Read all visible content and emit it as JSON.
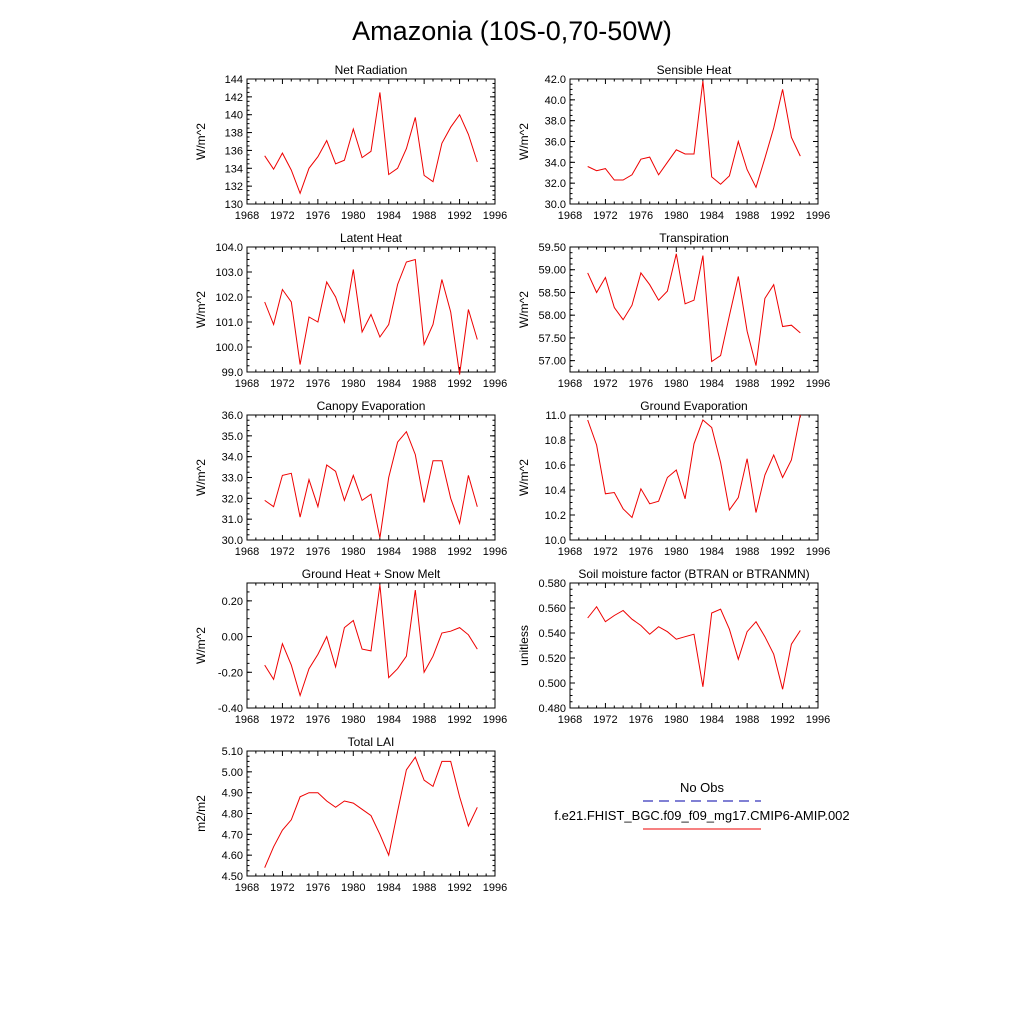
{
  "page": {
    "title": "Amazonia (10S-0,70-50W)"
  },
  "legend": {
    "obs_label": "No Obs",
    "model_label": "f.e21.FHIST_BGC.f09_f09_mg17.CMIP6-AMIP.002",
    "obs_color": "#0000aa",
    "model_color": "#ee0000"
  },
  "chart_data": [
    {
      "type": "line",
      "title": "Net Radiation",
      "ylabel": "W/m^2",
      "xlim": [
        1968,
        1996
      ],
      "ylim": [
        130,
        144
      ],
      "xticks": [
        1968,
        1972,
        1976,
        1980,
        1984,
        1988,
        1992,
        1996
      ],
      "xtick_labels": [
        "1968",
        "1972",
        "1976",
        "1980",
        "1984",
        "1988",
        "1992",
        "1996"
      ],
      "yticks": [
        130,
        132,
        134,
        136,
        138,
        140,
        142,
        144
      ],
      "ytick_labels": [
        "130",
        "132",
        "134",
        "136",
        "138",
        "140",
        "142",
        "144"
      ],
      "series": [
        {
          "name": "f.e21.FHIST_BGC.f09_f09_mg17.CMIP6-AMIP.002",
          "color": "#ee0000",
          "x": [
            1970,
            1971,
            1972,
            1973,
            1974,
            1975,
            1976,
            1977,
            1978,
            1979,
            1980,
            1981,
            1982,
            1983,
            1984,
            1985,
            1986,
            1987,
            1988,
            1989,
            1990,
            1991,
            1992,
            1993,
            1994
          ],
          "y": [
            135.4,
            133.9,
            135.7,
            133.8,
            131.2,
            134.0,
            135.3,
            137.1,
            134.5,
            134.9,
            138.4,
            135.2,
            135.9,
            142.5,
            133.3,
            134.0,
            136.2,
            139.7,
            133.2,
            132.5,
            136.8,
            138.6,
            140.0,
            137.8,
            134.7
          ]
        }
      ]
    },
    {
      "type": "line",
      "title": "Sensible Heat",
      "ylabel": "W/m^2",
      "xlim": [
        1968,
        1996
      ],
      "ylim": [
        30,
        42
      ],
      "xticks": [
        1968,
        1972,
        1976,
        1980,
        1984,
        1988,
        1992,
        1996
      ],
      "xtick_labels": [
        "1968",
        "1972",
        "1976",
        "1980",
        "1984",
        "1988",
        "1992",
        "1996"
      ],
      "yticks": [
        30,
        32,
        34,
        36,
        38,
        40,
        42
      ],
      "ytick_labels": [
        "30.0",
        "32.0",
        "34.0",
        "36.0",
        "38.0",
        "40.0",
        "42.0"
      ],
      "series": [
        {
          "name": "f.e21.FHIST_BGC.f09_f09_mg17.CMIP6-AMIP.002",
          "color": "#ee0000",
          "x": [
            1970,
            1971,
            1972,
            1973,
            1974,
            1975,
            1976,
            1977,
            1978,
            1979,
            1980,
            1981,
            1982,
            1983,
            1984,
            1985,
            1986,
            1987,
            1988,
            1989,
            1990,
            1991,
            1992,
            1993,
            1994
          ],
          "y": [
            33.6,
            33.2,
            33.4,
            32.3,
            32.3,
            32.8,
            34.3,
            34.5,
            32.8,
            34.0,
            35.2,
            34.8,
            34.8,
            41.8,
            32.6,
            31.9,
            32.7,
            36.0,
            33.3,
            31.6,
            34.4,
            37.3,
            41.0,
            36.4,
            34.6
          ]
        }
      ]
    },
    {
      "type": "line",
      "title": "Latent Heat",
      "ylabel": "W/m^2",
      "xlim": [
        1968,
        1996
      ],
      "ylim": [
        99,
        104
      ],
      "xticks": [
        1968,
        1972,
        1976,
        1980,
        1984,
        1988,
        1992,
        1996
      ],
      "xtick_labels": [
        "1968",
        "1972",
        "1976",
        "1980",
        "1984",
        "1988",
        "1992",
        "1996"
      ],
      "yticks": [
        99,
        100,
        101,
        102,
        103,
        104
      ],
      "ytick_labels": [
        "99.0",
        "100.0",
        "101.0",
        "102.0",
        "103.0",
        "104.0"
      ],
      "series": [
        {
          "name": "f.e21.FHIST_BGC.f09_f09_mg17.CMIP6-AMIP.002",
          "color": "#ee0000",
          "x": [
            1970,
            1971,
            1972,
            1973,
            1974,
            1975,
            1976,
            1977,
            1978,
            1979,
            1980,
            1981,
            1982,
            1983,
            1984,
            1985,
            1986,
            1987,
            1988,
            1989,
            1990,
            1991,
            1992,
            1993,
            1994
          ],
          "y": [
            101.8,
            100.9,
            102.3,
            101.8,
            99.3,
            101.2,
            101.0,
            102.6,
            102.0,
            101.0,
            103.1,
            100.6,
            101.3,
            100.4,
            100.9,
            102.5,
            103.4,
            103.5,
            100.1,
            100.9,
            102.7,
            101.4,
            98.9,
            101.5,
            100.3
          ]
        }
      ]
    },
    {
      "type": "line",
      "title": "Transpiration",
      "ylabel": "W/m^2",
      "xlim": [
        1968,
        1996
      ],
      "ylim": [
        56.75,
        59.5
      ],
      "xticks": [
        1968,
        1972,
        1976,
        1980,
        1984,
        1988,
        1992,
        1996
      ],
      "xtick_labels": [
        "1968",
        "1972",
        "1976",
        "1980",
        "1984",
        "1988",
        "1992",
        "1996"
      ],
      "yticks": [
        57.0,
        57.5,
        58.0,
        58.5,
        59.0,
        59.5
      ],
      "ytick_labels": [
        "57.00",
        "57.50",
        "58.00",
        "58.50",
        "59.00",
        "59.50"
      ],
      "series": [
        {
          "name": "f.e21.FHIST_BGC.f09_f09_mg17.CMIP6-AMIP.002",
          "color": "#ee0000",
          "x": [
            1970,
            1971,
            1972,
            1973,
            1974,
            1975,
            1976,
            1977,
            1978,
            1979,
            1980,
            1981,
            1982,
            1983,
            1984,
            1985,
            1986,
            1987,
            1988,
            1989,
            1990,
            1991,
            1992,
            1993,
            1994
          ],
          "y": [
            58.93,
            58.5,
            58.83,
            58.17,
            57.9,
            58.22,
            58.93,
            58.67,
            58.33,
            58.53,
            59.35,
            58.25,
            58.33,
            59.31,
            56.98,
            57.11,
            57.99,
            58.85,
            57.65,
            56.89,
            58.37,
            58.67,
            57.75,
            57.78,
            57.61
          ]
        }
      ]
    },
    {
      "type": "line",
      "title": "Canopy Evaporation",
      "ylabel": "W/m^2",
      "xlim": [
        1968,
        1996
      ],
      "ylim": [
        30,
        36
      ],
      "xticks": [
        1968,
        1972,
        1976,
        1980,
        1984,
        1988,
        1992,
        1996
      ],
      "xtick_labels": [
        "1968",
        "1972",
        "1976",
        "1980",
        "1984",
        "1988",
        "1992",
        "1996"
      ],
      "yticks": [
        30,
        31,
        32,
        33,
        34,
        35,
        36
      ],
      "ytick_labels": [
        "30.0",
        "31.0",
        "32.0",
        "33.0",
        "34.0",
        "35.0",
        "36.0"
      ],
      "series": [
        {
          "name": "f.e21.FHIST_BGC.f09_f09_mg17.CMIP6-AMIP.002",
          "color": "#ee0000",
          "x": [
            1970,
            1971,
            1972,
            1973,
            1974,
            1975,
            1976,
            1977,
            1978,
            1979,
            1980,
            1981,
            1982,
            1983,
            1984,
            1985,
            1986,
            1987,
            1988,
            1989,
            1990,
            1991,
            1992,
            1993,
            1994
          ],
          "y": [
            31.9,
            31.6,
            33.1,
            33.2,
            31.1,
            32.9,
            31.6,
            33.6,
            33.3,
            31.9,
            33.1,
            31.9,
            32.2,
            30.1,
            33.0,
            34.7,
            35.2,
            34.1,
            31.8,
            33.8,
            33.8,
            32.0,
            30.8,
            33.1,
            31.6
          ]
        }
      ]
    },
    {
      "type": "line",
      "title": "Ground Evaporation",
      "ylabel": "W/m^2",
      "xlim": [
        1968,
        1996
      ],
      "ylim": [
        10.0,
        11.0
      ],
      "xticks": [
        1968,
        1972,
        1976,
        1980,
        1984,
        1988,
        1992,
        1996
      ],
      "xtick_labels": [
        "1968",
        "1972",
        "1976",
        "1980",
        "1984",
        "1988",
        "1992",
        "1996"
      ],
      "yticks": [
        10.0,
        10.2,
        10.4,
        10.6,
        10.8,
        11.0
      ],
      "ytick_labels": [
        "10.0",
        "10.2",
        "10.4",
        "10.6",
        "10.8",
        "11.0"
      ],
      "series": [
        {
          "name": "f.e21.FHIST_BGC.f09_f09_mg17.CMIP6-AMIP.002",
          "color": "#ee0000",
          "x": [
            1970,
            1971,
            1972,
            1973,
            1974,
            1975,
            1976,
            1977,
            1978,
            1979,
            1980,
            1981,
            1982,
            1983,
            1984,
            1985,
            1986,
            1987,
            1988,
            1989,
            1990,
            1991,
            1992,
            1993,
            1994
          ],
          "y": [
            10.96,
            10.76,
            10.37,
            10.38,
            10.25,
            10.18,
            10.41,
            10.29,
            10.31,
            10.5,
            10.56,
            10.33,
            10.77,
            10.96,
            10.9,
            10.62,
            10.24,
            10.34,
            10.65,
            10.22,
            10.52,
            10.68,
            10.5,
            10.64,
            11.0
          ]
        }
      ]
    },
    {
      "type": "line",
      "title": "Ground Heat + Snow Melt",
      "ylabel": "W/m^2",
      "xlim": [
        1968,
        1996
      ],
      "ylim": [
        -0.4,
        0.3
      ],
      "xticks": [
        1968,
        1972,
        1976,
        1980,
        1984,
        1988,
        1992,
        1996
      ],
      "xtick_labels": [
        "1968",
        "1972",
        "1976",
        "1980",
        "1984",
        "1988",
        "1992",
        "1996"
      ],
      "yticks": [
        -0.4,
        -0.2,
        0.0,
        0.2
      ],
      "ytick_labels": [
        "-0.40",
        "-0.20",
        "0.00",
        "0.20"
      ],
      "series": [
        {
          "name": "f.e21.FHIST_BGC.f09_f09_mg17.CMIP6-AMIP.002",
          "color": "#ee0000",
          "x": [
            1970,
            1971,
            1972,
            1973,
            1974,
            1975,
            1976,
            1977,
            1978,
            1979,
            1980,
            1981,
            1982,
            1983,
            1984,
            1985,
            1986,
            1987,
            1988,
            1989,
            1990,
            1991,
            1992,
            1993,
            1994
          ],
          "y": [
            -0.16,
            -0.24,
            -0.04,
            -0.16,
            -0.33,
            -0.18,
            -0.1,
            0.0,
            -0.17,
            0.05,
            0.09,
            -0.07,
            -0.08,
            0.29,
            -0.23,
            -0.18,
            -0.11,
            0.26,
            -0.2,
            -0.11,
            0.02,
            0.03,
            0.05,
            0.01,
            -0.07
          ]
        }
      ]
    },
    {
      "type": "line",
      "title": "Soil moisture factor (BTRAN or BTRANMN)",
      "ylabel": "unitless",
      "xlim": [
        1968,
        1996
      ],
      "ylim": [
        0.48,
        0.58
      ],
      "xticks": [
        1968,
        1972,
        1976,
        1980,
        1984,
        1988,
        1992,
        1996
      ],
      "xtick_labels": [
        "1968",
        "1972",
        "1976",
        "1980",
        "1984",
        "1988",
        "1992",
        "1996"
      ],
      "yticks": [
        0.48,
        0.5,
        0.52,
        0.54,
        0.56,
        0.58
      ],
      "ytick_labels": [
        "0.480",
        "0.500",
        "0.520",
        "0.540",
        "0.560",
        "0.580"
      ],
      "series": [
        {
          "name": "f.e21.FHIST_BGC.f09_f09_mg17.CMIP6-AMIP.002",
          "color": "#ee0000",
          "x": [
            1970,
            1971,
            1972,
            1973,
            1974,
            1975,
            1976,
            1977,
            1978,
            1979,
            1980,
            1981,
            1982,
            1983,
            1984,
            1985,
            1986,
            1987,
            1988,
            1989,
            1990,
            1991,
            1992,
            1993,
            1994
          ],
          "y": [
            0.552,
            0.561,
            0.549,
            0.554,
            0.558,
            0.551,
            0.546,
            0.539,
            0.545,
            0.541,
            0.535,
            0.537,
            0.539,
            0.497,
            0.556,
            0.559,
            0.543,
            0.519,
            0.541,
            0.549,
            0.537,
            0.523,
            0.495,
            0.531,
            0.542
          ]
        }
      ]
    },
    {
      "type": "line",
      "title": "Total LAI",
      "ylabel": "m2/m2",
      "xlim": [
        1968,
        1996
      ],
      "ylim": [
        4.5,
        5.1
      ],
      "xticks": [
        1968,
        1972,
        1976,
        1980,
        1984,
        1988,
        1992,
        1996
      ],
      "xtick_labels": [
        "1968",
        "1972",
        "1976",
        "1980",
        "1984",
        "1988",
        "1992",
        "1996"
      ],
      "yticks": [
        4.5,
        4.6,
        4.7,
        4.8,
        4.9,
        5.0,
        5.1
      ],
      "ytick_labels": [
        "4.50",
        "4.60",
        "4.70",
        "4.80",
        "4.90",
        "5.00",
        "5.10"
      ],
      "series": [
        {
          "name": "f.e21.FHIST_BGC.f09_f09_mg17.CMIP6-AMIP.002",
          "color": "#ee0000",
          "x": [
            1970,
            1971,
            1972,
            1973,
            1974,
            1975,
            1976,
            1977,
            1978,
            1979,
            1980,
            1981,
            1982,
            1983,
            1984,
            1985,
            1986,
            1987,
            1988,
            1989,
            1990,
            1991,
            1992,
            1993,
            1994
          ],
          "y": [
            4.54,
            4.64,
            4.72,
            4.77,
            4.88,
            4.9,
            4.9,
            4.86,
            4.83,
            4.86,
            4.85,
            4.82,
            4.79,
            4.7,
            4.6,
            4.81,
            5.01,
            5.07,
            4.96,
            4.93,
            5.05,
            5.05,
            4.88,
            4.74,
            4.83
          ]
        }
      ]
    }
  ]
}
